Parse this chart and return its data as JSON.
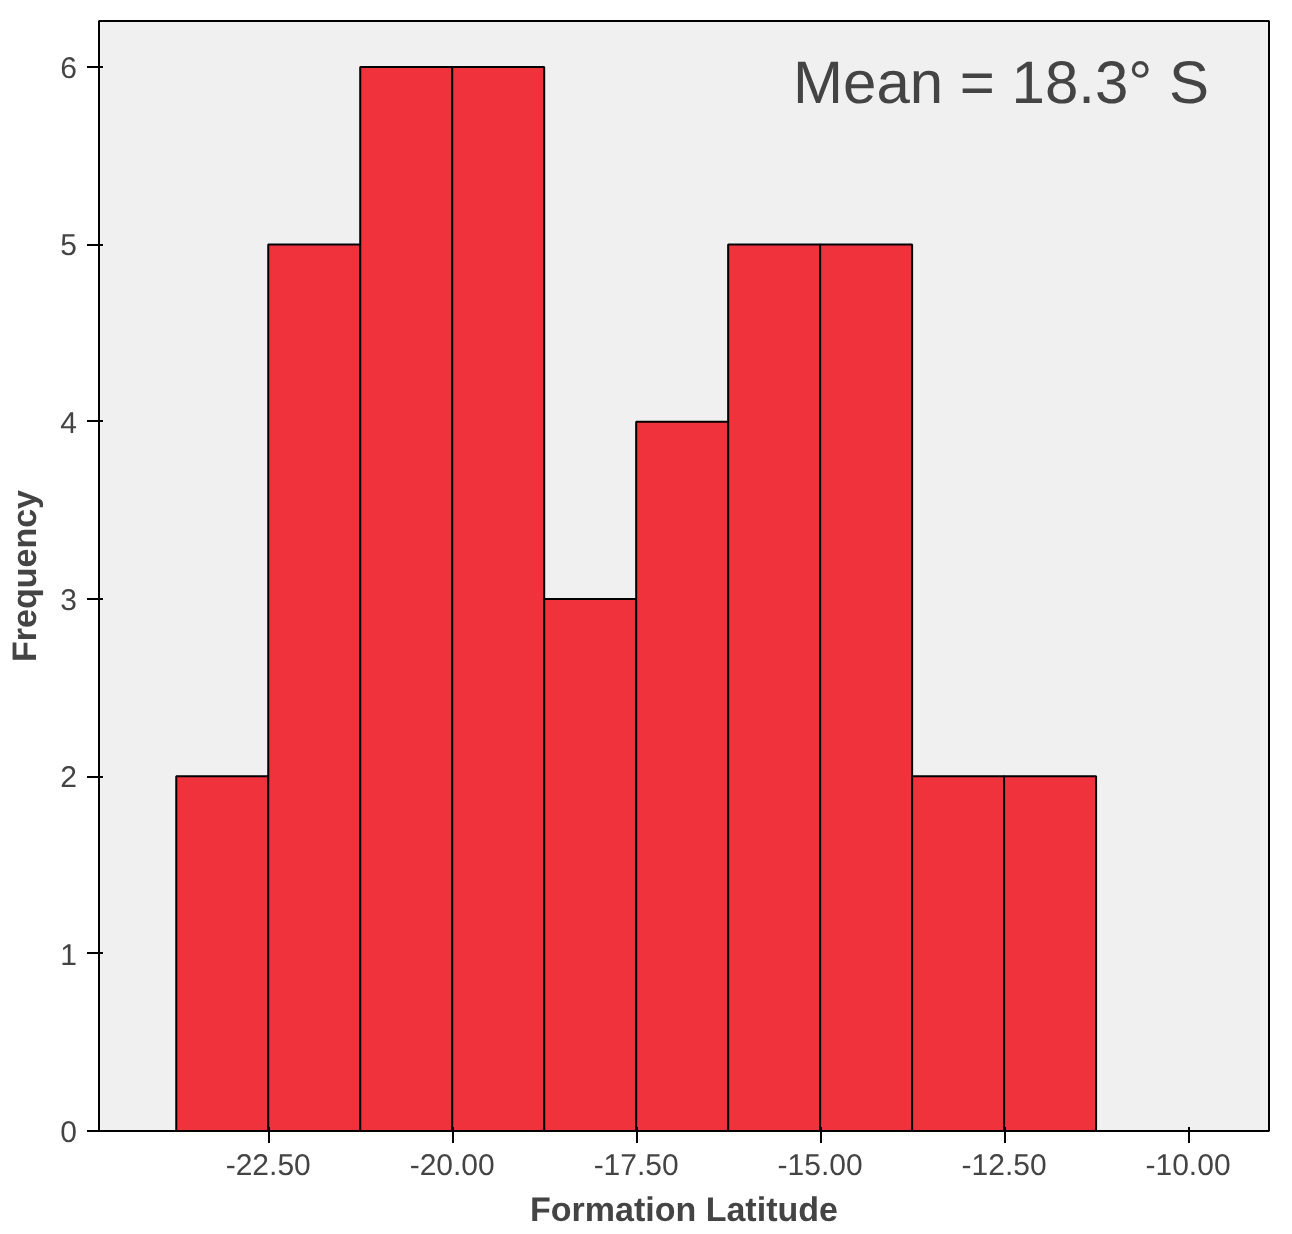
{
  "chart_data": {
    "type": "histogram",
    "xlabel": "Formation Latitude",
    "ylabel": "Frequency",
    "bins": [
      -23.75,
      -22.5,
      -21.25,
      -20.0,
      -18.75,
      -17.5,
      -16.25,
      -15.0,
      -13.75,
      -12.5,
      -11.25
    ],
    "values": [
      2,
      5,
      6,
      6,
      3,
      4,
      5,
      5,
      2,
      2
    ],
    "color": "#f0323c",
    "xlim": [
      -24.8,
      -8.9
    ],
    "ylim": [
      0,
      6.26
    ],
    "xticks": [
      {
        "value": -22.5,
        "label": "-22.50"
      },
      {
        "value": -20,
        "label": "-20.00"
      },
      {
        "value": -17.5,
        "label": "-17.50"
      },
      {
        "value": -15,
        "label": "-15.00"
      },
      {
        "value": -12.5,
        "label": "-12.50"
      },
      {
        "value": -10,
        "label": "-10.00"
      }
    ],
    "yticks": [
      0,
      1,
      2,
      3,
      4,
      5,
      6
    ],
    "annotations": [
      "Mean = 18.3° S"
    ],
    "grid": false
  }
}
